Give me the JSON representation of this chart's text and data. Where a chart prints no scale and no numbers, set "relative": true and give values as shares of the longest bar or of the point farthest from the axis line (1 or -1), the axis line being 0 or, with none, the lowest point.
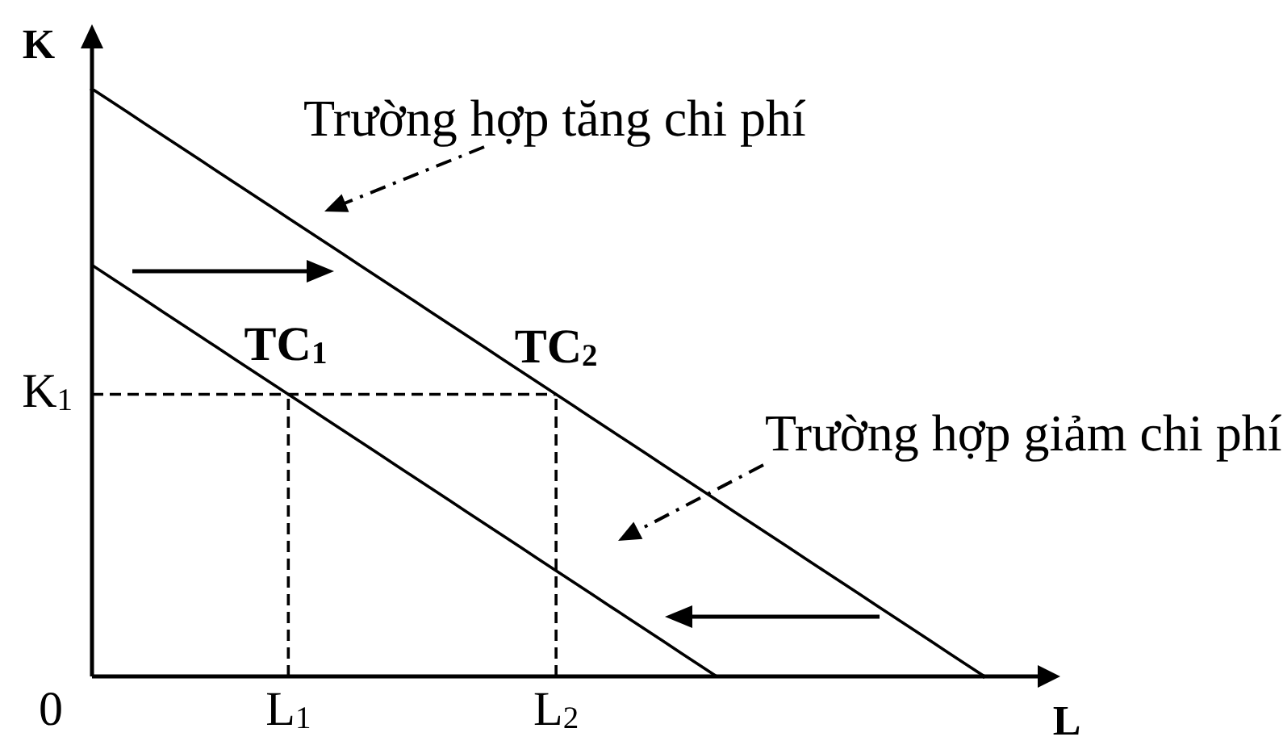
{
  "chart_data": {
    "type": "line",
    "relative": true,
    "xlabel": "L",
    "ylabel": "K",
    "marker": "none",
    "categories": [
      null,
      null,
      null,
      null,
      null,
      null,
      null,
      null,
      null,
      null,
      null,
      "L$_{1}$",
      null,
      null,
      null,
      null,
      null,
      null,
      null,
      null,
      null,
      null,
      null,
      null,
      null,
      null,
      "L$_{2}$",
      null,
      null,
      null,
      null,
      null,
      null,
      null,
      null,
      null,
      null,
      null,
      null,
      null,
      null,
      null,
      null,
      null,
      null,
      null,
      null,
      null,
      null,
      null,
      null
    ],
    "series": [
      {
        "name": "TC$_{1}$",
        "color": "#000000",
        "values": [
          0.7,
          0.68,
          0.66,
          0.64,
          0.62,
          0.6,
          0.58,
          0.56,
          0.54,
          0.52,
          0.5,
          0.48,
          0.46,
          0.44,
          0.42,
          0.4,
          0.38,
          0.36,
          0.34,
          0.32,
          0.3,
          0.28,
          0.26,
          0.24,
          0.22,
          0.2,
          0.18,
          0.16,
          0.14,
          0.12,
          0.1,
          0.08,
          0.06,
          0.04,
          0.02,
          0,
          null,
          null,
          null,
          null,
          null,
          null,
          null,
          null,
          null,
          null,
          null,
          null,
          null,
          null,
          null
        ]
      },
      {
        "name": "TC$_{2}$",
        "color": "#000000",
        "values": [
          1,
          0.98,
          0.96,
          0.94,
          0.92,
          0.9,
          0.88,
          0.86,
          0.84,
          0.82,
          0.8,
          0.78,
          0.76,
          0.74,
          0.72,
          0.7,
          0.68,
          0.66,
          0.64,
          0.62,
          0.6,
          0.58,
          0.56,
          0.54,
          0.52,
          0.5,
          0.48,
          0.46,
          0.44,
          0.42,
          0.4,
          0.38,
          0.36,
          0.34,
          0.32,
          0.3,
          0.28,
          0.26,
          0.24,
          0.22,
          0.2,
          0.18,
          0.16,
          0.14,
          0.12,
          0.1,
          0.08,
          0.06,
          0.04,
          0.02,
          0
        ]
      },
      {
        "color": "#000000",
        "line_style": "dashed",
        "values": [
          0.48,
          0.48,
          0.48,
          0.48,
          0.48,
          0.48,
          0.48,
          0.48,
          0.48,
          0.48,
          0.48,
          0.48,
          0.48,
          0.48,
          0.48,
          0.48,
          0.48,
          0.48,
          0.48,
          0.48,
          0.48,
          0.48,
          0.48,
          0.48,
          0.48,
          0.48,
          0.48,
          null,
          null,
          null,
          null,
          null,
          null,
          null,
          null,
          null,
          null,
          null,
          null,
          null,
          null,
          null,
          null,
          null,
          null,
          null,
          null,
          null,
          null,
          null,
          null
        ]
      },
      {
        "color": "#000000",
        "line_style": "dashed",
        "x": [
          "L$_{1}$",
          "L$_{1}$"
        ],
        "values": [
          0,
          0.48
        ]
      },
      {
        "color": "#000000",
        "line_style": "dashed",
        "x": [
          "L$_{2}$",
          "L$_{2}$"
        ],
        "values": [
          0,
          0.48
        ]
      }
    ],
    "annotations": [
      "Trường hợp tăng chi phí",
      "Trường hợp giảm chi phí",
      "K$_{1}$",
      "0"
    ]
  }
}
